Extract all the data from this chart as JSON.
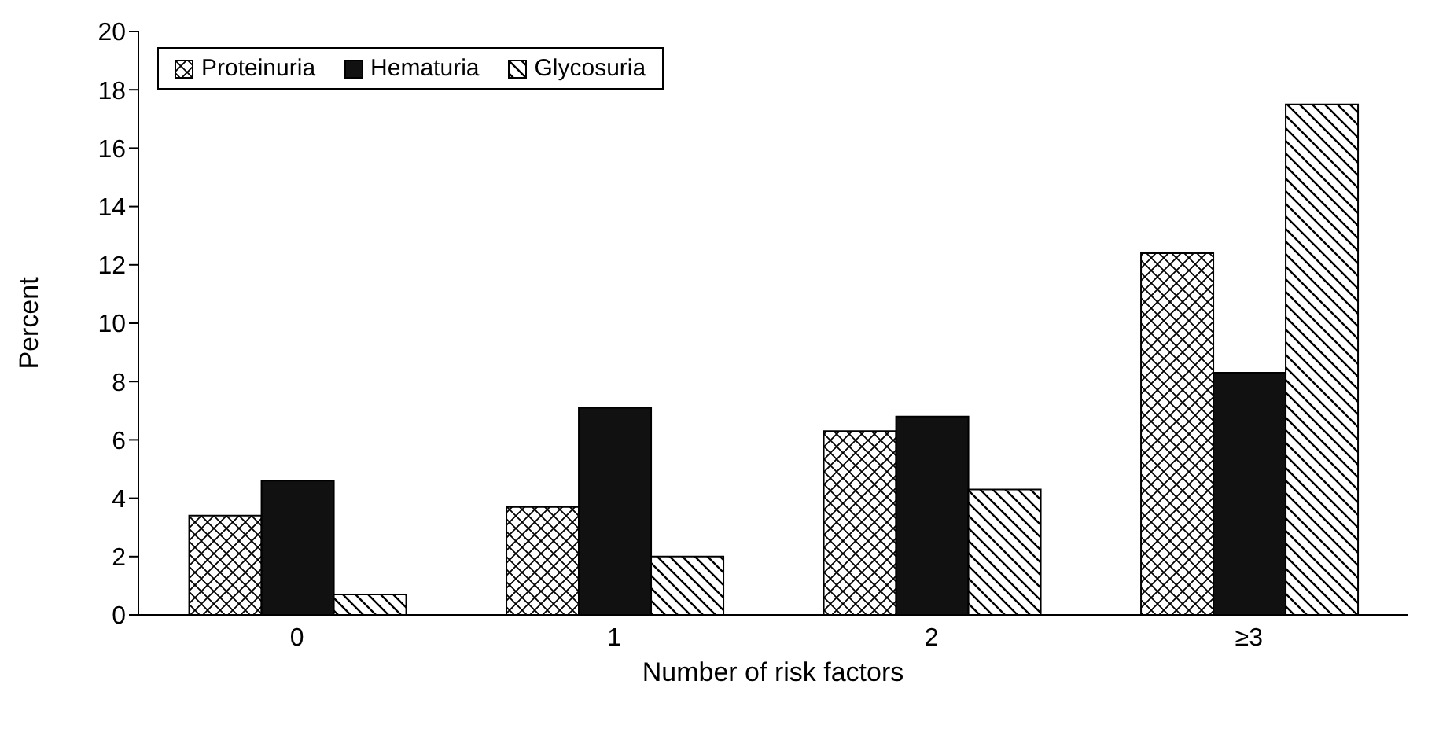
{
  "chart_data": {
    "type": "bar",
    "xlabel": "Number of risk factors",
    "ylabel": "Percent",
    "categories": [
      "0",
      "1",
      "2",
      "≥3"
    ],
    "series": [
      {
        "name": "Proteinuria",
        "color": "#000000",
        "values": [
          3.4,
          3.7,
          6.3,
          12.4
        ]
      },
      {
        "name": "Hematuria",
        "color": "#111111",
        "values": [
          4.6,
          7.1,
          6.8,
          8.3
        ]
      },
      {
        "name": "Glycosuria",
        "color": "#000000",
        "values": [
          0.7,
          2.0,
          4.3,
          17.5
        ]
      }
    ],
    "ylim": [
      0,
      20
    ],
    "yticks": [
      0,
      2,
      4,
      6,
      8,
      10,
      12,
      14,
      16,
      18,
      20
    ],
    "grid": false,
    "legend": "top left"
  }
}
